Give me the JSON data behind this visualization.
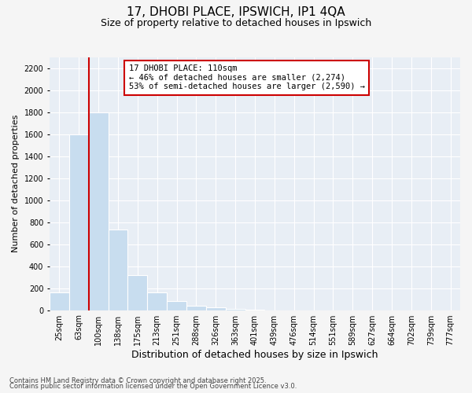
{
  "title1": "17, DHOBI PLACE, IPSWICH, IP1 4QA",
  "title2": "Size of property relative to detached houses in Ipswich",
  "xlabel": "Distribution of detached houses by size in Ipswich",
  "ylabel": "Number of detached properties",
  "categories": [
    "25sqm",
    "63sqm",
    "100sqm",
    "138sqm",
    "175sqm",
    "213sqm",
    "251sqm",
    "288sqm",
    "326sqm",
    "363sqm",
    "401sqm",
    "439sqm",
    "476sqm",
    "514sqm",
    "551sqm",
    "589sqm",
    "627sqm",
    "664sqm",
    "702sqm",
    "739sqm",
    "777sqm"
  ],
  "values": [
    160,
    1600,
    1800,
    730,
    320,
    160,
    80,
    40,
    25,
    10,
    5,
    0,
    0,
    0,
    0,
    0,
    0,
    0,
    0,
    0,
    0
  ],
  "bar_color": "#c8ddef",
  "vline_index": 2,
  "vline_color": "#cc0000",
  "annotation_title": "17 DHOBI PLACE: 110sqm",
  "annotation_line1": "← 46% of detached houses are smaller (2,274)",
  "annotation_line2": "53% of semi-detached houses are larger (2,590) →",
  "annotation_box_color": "#cc0000",
  "ylim": [
    0,
    2300
  ],
  "yticks": [
    0,
    200,
    400,
    600,
    800,
    1000,
    1200,
    1400,
    1600,
    1800,
    2000,
    2200
  ],
  "footer1": "Contains HM Land Registry data © Crown copyright and database right 2025.",
  "footer2": "Contains public sector information licensed under the Open Government Licence v3.0.",
  "bg_color": "#f5f5f5",
  "plot_bg_color": "#e8eef5",
  "grid_color": "#ffffff",
  "title1_fontsize": 11,
  "title2_fontsize": 9,
  "xlabel_fontsize": 9,
  "ylabel_fontsize": 8,
  "tick_fontsize": 7,
  "footer_fontsize": 6
}
